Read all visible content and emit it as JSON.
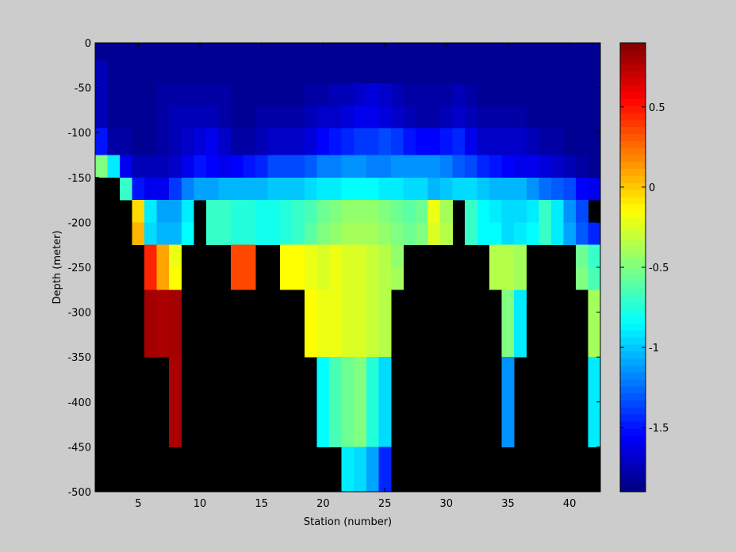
{
  "chart_data": {
    "type": "heatmap",
    "title": "",
    "xlabel": "Station (number)",
    "ylabel": "Depth (meter)",
    "x_ticks": [
      5,
      10,
      15,
      20,
      25,
      30,
      35,
      40
    ],
    "y_ticks": [
      0,
      -50,
      -100,
      -150,
      -200,
      -250,
      -300,
      -350,
      -400,
      -450,
      -500
    ],
    "x_range": [
      1.5,
      42.5
    ],
    "y_range": [
      -500,
      0
    ],
    "x": [
      2,
      3,
      4,
      5,
      6,
      7,
      8,
      9,
      10,
      11,
      12,
      13,
      14,
      15,
      16,
      17,
      18,
      19,
      20,
      21,
      22,
      23,
      24,
      25,
      26,
      27,
      28,
      29,
      30,
      31,
      32,
      33,
      34,
      35,
      36,
      37,
      38,
      39,
      40,
      41,
      42
    ],
    "depth_rows": [
      {
        "top": 0,
        "bottom": -20
      },
      {
        "top": -20,
        "bottom": -45
      },
      {
        "top": -45,
        "bottom": -70
      },
      {
        "top": -70,
        "bottom": -95
      },
      {
        "top": -95,
        "bottom": -125
      },
      {
        "top": -125,
        "bottom": -150
      },
      {
        "top": -150,
        "bottom": -175
      },
      {
        "top": -175,
        "bottom": -200
      },
      {
        "top": -200,
        "bottom": -225
      },
      {
        "top": -225,
        "bottom": -250
      },
      {
        "top": -250,
        "bottom": -275
      },
      {
        "top": -275,
        "bottom": -300
      },
      {
        "top": -300,
        "bottom": -350
      },
      {
        "top": -350,
        "bottom": -400
      },
      {
        "top": -400,
        "bottom": -450
      },
      {
        "top": -450,
        "bottom": -500
      }
    ],
    "values": [
      [
        -1.85,
        -1.85,
        -1.85,
        -1.85,
        -1.85,
        -1.85,
        -1.85,
        -1.85,
        -1.85,
        -1.85,
        -1.85,
        -1.85,
        -1.85,
        -1.85,
        -1.85,
        -1.85,
        -1.85,
        -1.85,
        -1.85,
        -1.85,
        -1.85,
        -1.85,
        -1.85,
        -1.85,
        -1.85,
        -1.85,
        -1.85,
        -1.85,
        -1.85,
        -1.85,
        -1.85,
        -1.85,
        -1.85,
        -1.85,
        -1.85,
        -1.85,
        -1.85,
        -1.85,
        -1.85,
        -1.85,
        -1.85
      ],
      [
        -1.75,
        -1.85,
        -1.85,
        -1.85,
        -1.85,
        -1.85,
        -1.85,
        -1.85,
        -1.85,
        -1.85,
        -1.85,
        -1.85,
        -1.85,
        -1.85,
        -1.85,
        -1.85,
        -1.85,
        -1.85,
        -1.85,
        -1.85,
        -1.85,
        -1.85,
        -1.85,
        -1.85,
        -1.85,
        -1.85,
        -1.85,
        -1.85,
        -1.85,
        -1.85,
        -1.85,
        -1.85,
        -1.85,
        -1.85,
        -1.85,
        -1.85,
        -1.85,
        -1.85,
        -1.85,
        -1.85,
        -1.85
      ],
      [
        -1.75,
        -1.85,
        -1.85,
        -1.85,
        -1.85,
        -1.8,
        -1.8,
        -1.8,
        -1.8,
        -1.8,
        -1.8,
        -1.85,
        -1.85,
        -1.85,
        -1.85,
        -1.85,
        -1.85,
        -1.8,
        -1.8,
        -1.75,
        -1.75,
        -1.7,
        -1.65,
        -1.7,
        -1.75,
        -1.8,
        -1.8,
        -1.8,
        -1.8,
        -1.75,
        -1.8,
        -1.85,
        -1.85,
        -1.85,
        -1.85,
        -1.85,
        -1.85,
        -1.85,
        -1.85,
        -1.85,
        -1.85
      ],
      [
        -1.75,
        -1.85,
        -1.85,
        -1.85,
        -1.85,
        -1.8,
        -1.75,
        -1.75,
        -1.75,
        -1.75,
        -1.8,
        -1.85,
        -1.85,
        -1.8,
        -1.8,
        -1.8,
        -1.8,
        -1.75,
        -1.7,
        -1.7,
        -1.65,
        -1.6,
        -1.6,
        -1.65,
        -1.7,
        -1.75,
        -1.8,
        -1.8,
        -1.75,
        -1.7,
        -1.75,
        -1.8,
        -1.8,
        -1.8,
        -1.8,
        -1.85,
        -1.85,
        -1.85,
        -1.85,
        -1.85,
        -1.85
      ],
      [
        -1.5,
        -1.8,
        -1.8,
        -1.85,
        -1.85,
        -1.8,
        -1.75,
        -1.7,
        -1.65,
        -1.6,
        -1.7,
        -1.8,
        -1.8,
        -1.75,
        -1.7,
        -1.7,
        -1.7,
        -1.65,
        -1.55,
        -1.5,
        -1.45,
        -1.4,
        -1.4,
        -1.35,
        -1.4,
        -1.5,
        -1.55,
        -1.55,
        -1.5,
        -1.45,
        -1.6,
        -1.7,
        -1.7,
        -1.7,
        -1.7,
        -1.75,
        -1.8,
        -1.8,
        -1.85,
        -1.85,
        -1.85
      ],
      [
        -0.5,
        -0.9,
        -1.6,
        -1.75,
        -1.75,
        -1.75,
        -1.7,
        -1.6,
        -1.5,
        -1.55,
        -1.6,
        -1.55,
        -1.5,
        -1.45,
        -1.35,
        -1.35,
        -1.35,
        -1.3,
        -1.2,
        -1.2,
        -1.15,
        -1.15,
        -1.2,
        -1.2,
        -1.15,
        -1.15,
        -1.15,
        -1.15,
        -1.2,
        -1.3,
        -1.35,
        -1.45,
        -1.5,
        -1.55,
        -1.6,
        -1.6,
        -1.65,
        -1.7,
        -1.75,
        -1.8,
        -1.85
      ],
      [
        null,
        null,
        -0.7,
        -1.5,
        -1.6,
        -1.6,
        -1.4,
        -1.2,
        -1.1,
        -1.1,
        -1.05,
        -1.05,
        -1.05,
        -1.05,
        -1.0,
        -1.0,
        -1.0,
        -0.95,
        -0.9,
        -0.9,
        -0.85,
        -0.85,
        -0.85,
        -0.9,
        -0.9,
        -0.95,
        -0.95,
        -1.05,
        -1.0,
        -0.95,
        -0.95,
        -1.0,
        -1.05,
        -1.05,
        -1.05,
        -1.15,
        -1.25,
        -1.3,
        -1.35,
        -1.55,
        -1.6
      ],
      [
        null,
        null,
        null,
        -0.05,
        -0.9,
        -1.1,
        -1.1,
        -0.9,
        null,
        -0.7,
        -0.7,
        -0.75,
        -0.75,
        -0.8,
        -0.8,
        -0.75,
        -0.7,
        -0.65,
        -0.55,
        -0.5,
        -0.45,
        -0.45,
        -0.45,
        -0.5,
        -0.55,
        -0.6,
        -0.55,
        -0.2,
        -0.4,
        null,
        -0.7,
        -0.85,
        -0.9,
        -0.95,
        -0.95,
        -0.9,
        -0.7,
        -0.9,
        -1.15,
        -1.35,
        null
      ],
      [
        null,
        null,
        null,
        0.05,
        -0.95,
        -1.05,
        -1.05,
        -0.85,
        null,
        -0.7,
        -0.7,
        -0.75,
        -0.75,
        -0.8,
        -0.8,
        -0.75,
        -0.7,
        -0.6,
        -0.5,
        -0.45,
        -0.4,
        -0.4,
        -0.4,
        -0.45,
        -0.5,
        -0.55,
        -0.5,
        -0.25,
        -0.35,
        null,
        -0.7,
        -0.85,
        -0.85,
        -0.95,
        -0.9,
        -0.85,
        -0.7,
        -0.9,
        -1.1,
        -1.3,
        -1.45
      ],
      [
        null,
        null,
        null,
        null,
        0.45,
        0.1,
        -0.2,
        null,
        null,
        null,
        null,
        0.35,
        0.35,
        null,
        null,
        -0.15,
        -0.15,
        -0.2,
        -0.25,
        -0.2,
        -0.25,
        -0.25,
        -0.3,
        -0.35,
        -0.45,
        null,
        null,
        null,
        null,
        null,
        null,
        null,
        -0.35,
        -0.35,
        -0.4,
        null,
        null,
        null,
        null,
        -0.55,
        -0.7
      ],
      [
        null,
        null,
        null,
        null,
        0.45,
        0.1,
        -0.15,
        null,
        null,
        null,
        null,
        0.35,
        0.35,
        null,
        null,
        -0.15,
        -0.15,
        -0.2,
        -0.25,
        -0.2,
        -0.25,
        -0.25,
        -0.3,
        -0.35,
        -0.4,
        null,
        null,
        null,
        null,
        null,
        null,
        null,
        -0.35,
        -0.35,
        -0.4,
        null,
        null,
        null,
        null,
        -0.5,
        -0.65
      ],
      [
        null,
        null,
        null,
        null,
        0.8,
        0.78,
        0.8,
        null,
        null,
        null,
        null,
        null,
        null,
        null,
        null,
        null,
        null,
        -0.15,
        -0.2,
        -0.2,
        -0.25,
        -0.25,
        -0.3,
        -0.35,
        null,
        null,
        null,
        null,
        null,
        null,
        null,
        null,
        null,
        -0.5,
        -0.9,
        null,
        null,
        null,
        null,
        null,
        -0.4
      ],
      [
        null,
        null,
        null,
        null,
        0.8,
        0.78,
        0.8,
        null,
        null,
        null,
        null,
        null,
        null,
        null,
        null,
        null,
        null,
        -0.15,
        -0.2,
        -0.2,
        -0.25,
        -0.25,
        -0.3,
        -0.35,
        null,
        null,
        null,
        null,
        null,
        null,
        null,
        null,
        null,
        -0.5,
        -0.9,
        null,
        null,
        null,
        null,
        null,
        -0.4
      ],
      [
        null,
        null,
        null,
        null,
        null,
        null,
        0.78,
        null,
        null,
        null,
        null,
        null,
        null,
        null,
        null,
        null,
        null,
        null,
        -0.85,
        -0.65,
        -0.55,
        -0.5,
        -0.75,
        -0.95,
        null,
        null,
        null,
        null,
        null,
        null,
        null,
        null,
        null,
        -1.15,
        null,
        null,
        null,
        null,
        null,
        null,
        -0.9
      ],
      [
        null,
        null,
        null,
        null,
        null,
        null,
        0.78,
        null,
        null,
        null,
        null,
        null,
        null,
        null,
        null,
        null,
        null,
        null,
        -0.85,
        -0.65,
        -0.55,
        -0.5,
        -0.75,
        -0.95,
        null,
        null,
        null,
        null,
        null,
        null,
        null,
        null,
        null,
        -1.15,
        null,
        null,
        null,
        null,
        null,
        null,
        -0.9
      ],
      [
        null,
        null,
        null,
        null,
        null,
        null,
        null,
        null,
        null,
        null,
        null,
        null,
        null,
        null,
        null,
        null,
        null,
        null,
        null,
        null,
        -0.9,
        -0.95,
        -1.1,
        -1.45,
        null,
        null,
        null,
        null,
        null,
        null,
        null,
        null,
        null,
        null,
        null,
        null,
        null,
        null,
        null,
        null,
        null
      ]
    ],
    "colorbar": {
      "min": -1.9,
      "max": 0.9,
      "ticks": [
        0.5,
        0,
        -0.5,
        -1,
        -1.5
      ]
    },
    "missing_color": "#000000",
    "background": "#cccccc",
    "colormap": "jet",
    "grid": false,
    "legend": "none"
  }
}
